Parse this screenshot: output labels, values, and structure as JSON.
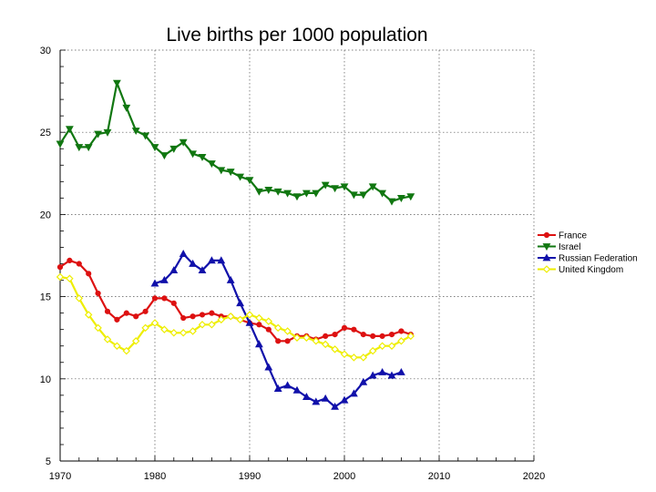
{
  "chart_data": {
    "type": "line",
    "title": "Live births per 1000 population",
    "xlabel": "",
    "ylabel": "",
    "xlim": [
      1970,
      2020
    ],
    "ylim": [
      5,
      30
    ],
    "x_ticks": [
      "1970",
      "1980",
      "1990",
      "2000",
      "2010",
      "2020"
    ],
    "y_ticks": [
      "5",
      "10",
      "15",
      "20",
      "25",
      "30"
    ],
    "grid": true,
    "legend_position": "right",
    "series": [
      {
        "name": "France",
        "color": "#dd1111",
        "marker": "circle",
        "x": [
          1970,
          1971,
          1972,
          1973,
          1974,
          1975,
          1976,
          1977,
          1978,
          1979,
          1980,
          1981,
          1982,
          1983,
          1984,
          1985,
          1986,
          1987,
          1988,
          1989,
          1990,
          1991,
          1992,
          1993,
          1994,
          1995,
          1996,
          1997,
          1998,
          1999,
          2000,
          2001,
          2002,
          2003,
          2004,
          2005,
          2006,
          2007
        ],
        "values": [
          16.8,
          17.2,
          17.0,
          16.4,
          15.2,
          14.1,
          13.6,
          14.0,
          13.8,
          14.1,
          14.9,
          14.9,
          14.6,
          13.7,
          13.8,
          13.9,
          14.0,
          13.8,
          13.8,
          13.6,
          13.4,
          13.3,
          13.0,
          12.3,
          12.3,
          12.6,
          12.6,
          12.4,
          12.6,
          12.7,
          13.1,
          13.0,
          12.7,
          12.6,
          12.6,
          12.7,
          12.9,
          12.7
        ]
      },
      {
        "name": "Israel",
        "color": "#117711",
        "marker": "triangle-down",
        "x": [
          1970,
          1971,
          1972,
          1973,
          1974,
          1975,
          1976,
          1977,
          1978,
          1979,
          1980,
          1981,
          1982,
          1983,
          1984,
          1985,
          1986,
          1987,
          1988,
          1989,
          1990,
          1991,
          1992,
          1993,
          1994,
          1995,
          1996,
          1997,
          1998,
          1999,
          2000,
          2001,
          2002,
          2003,
          2004,
          2005,
          2006,
          2007
        ],
        "values": [
          24.3,
          25.2,
          24.1,
          24.1,
          24.9,
          25.0,
          28.0,
          26.5,
          25.1,
          24.8,
          24.1,
          23.6,
          24.0,
          24.4,
          23.7,
          23.5,
          23.1,
          22.7,
          22.6,
          22.3,
          22.1,
          21.4,
          21.5,
          21.4,
          21.3,
          21.1,
          21.3,
          21.3,
          21.8,
          21.6,
          21.7,
          21.2,
          21.2,
          21.7,
          21.3,
          20.8,
          21.0,
          21.1
        ]
      },
      {
        "name": "Russian Federation",
        "color": "#1111aa",
        "marker": "triangle-up",
        "x": [
          1980,
          1981,
          1982,
          1983,
          1984,
          1985,
          1986,
          1987,
          1988,
          1989,
          1990,
          1991,
          1992,
          1993,
          1994,
          1995,
          1996,
          1997,
          1998,
          1999,
          2000,
          2001,
          2002,
          2003,
          2004,
          2005,
          2006
        ],
        "values": [
          15.8,
          16.0,
          16.6,
          17.6,
          17.0,
          16.6,
          17.2,
          17.2,
          16.0,
          14.6,
          13.4,
          12.1,
          10.7,
          9.4,
          9.6,
          9.3,
          8.9,
          8.6,
          8.8,
          8.3,
          8.7,
          9.1,
          9.8,
          10.2,
          10.4,
          10.2,
          10.4
        ]
      },
      {
        "name": "United Kingdom",
        "color": "#eeee00",
        "marker": "diamond",
        "x": [
          1970,
          1971,
          1972,
          1973,
          1974,
          1975,
          1976,
          1977,
          1978,
          1979,
          1980,
          1981,
          1982,
          1983,
          1984,
          1985,
          1986,
          1987,
          1988,
          1989,
          1990,
          1991,
          1992,
          1993,
          1994,
          1995,
          1996,
          1997,
          1998,
          1999,
          2000,
          2001,
          2002,
          2003,
          2004,
          2005,
          2006,
          2007
        ],
        "values": [
          16.2,
          16.1,
          14.9,
          13.9,
          13.1,
          12.4,
          12.0,
          11.7,
          12.3,
          13.1,
          13.4,
          13.0,
          12.8,
          12.8,
          12.9,
          13.3,
          13.3,
          13.6,
          13.8,
          13.6,
          13.9,
          13.7,
          13.5,
          13.1,
          12.9,
          12.5,
          12.5,
          12.3,
          12.1,
          11.8,
          11.5,
          11.3,
          11.3,
          11.7,
          12.0,
          12.0,
          12.3,
          12.6
        ]
      }
    ]
  }
}
